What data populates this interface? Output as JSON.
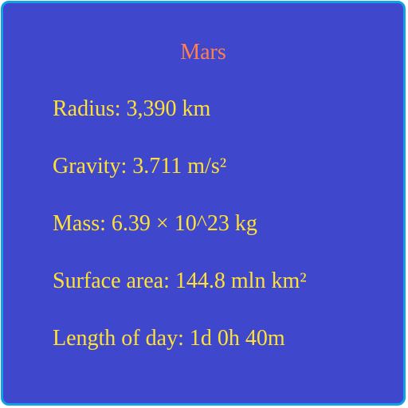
{
  "colors": {
    "background": "#3f48cc",
    "border": "#0fa0e8",
    "title": "#ff7f50",
    "text": "#ffe135"
  },
  "card": {
    "title": "Mars",
    "facts": [
      "Radius: 3,390 km",
      "Gravity: 3.711 m/s²",
      "Mass: 6.39 × 10^23 kg",
      "Surface area: 144.8 mln km²",
      "Length of day: 1d 0h 40m"
    ]
  }
}
